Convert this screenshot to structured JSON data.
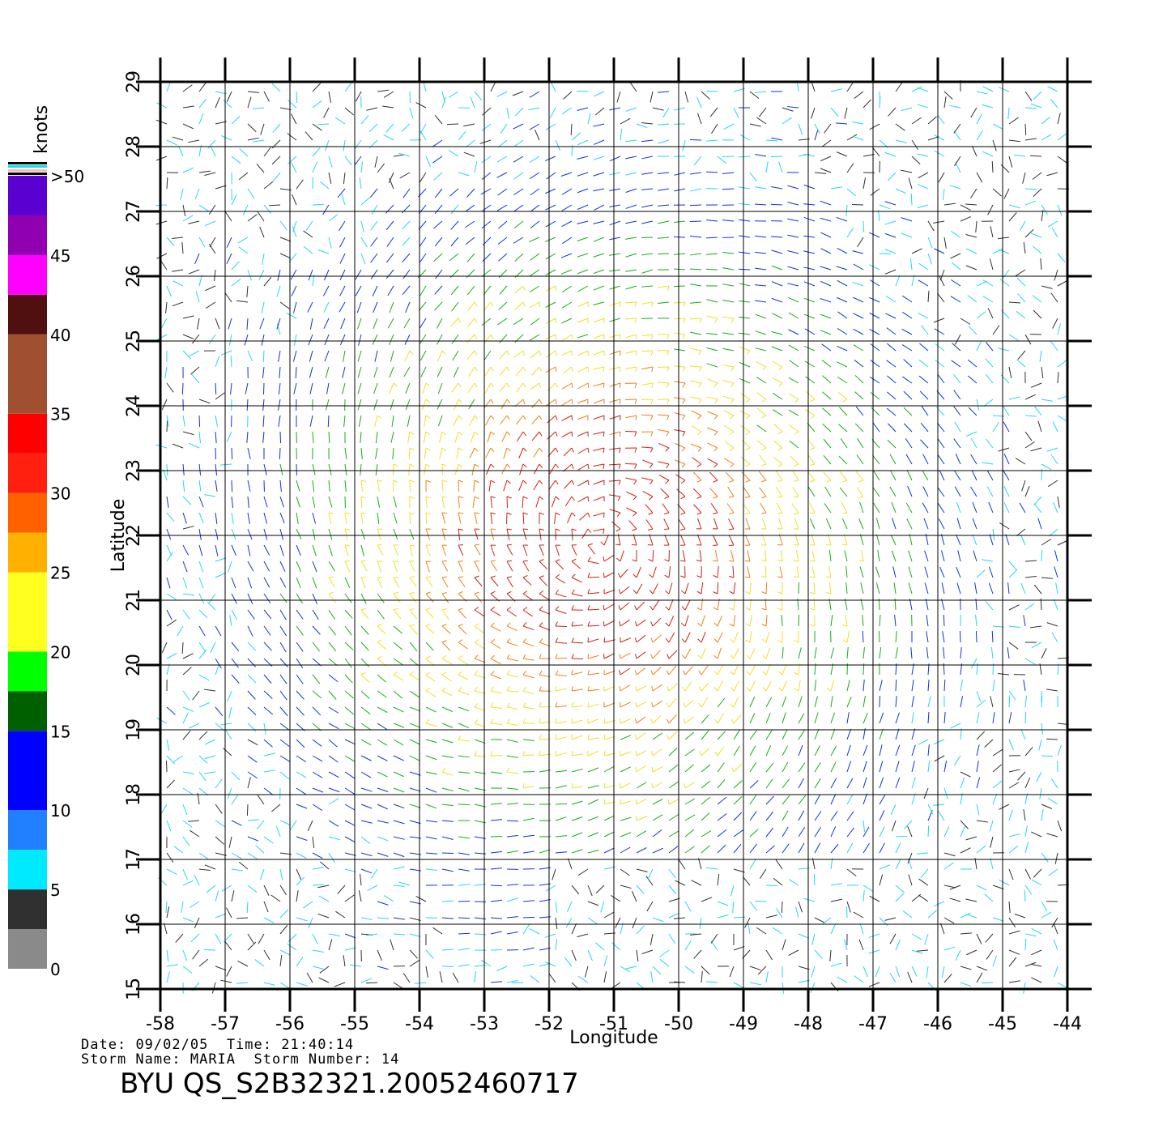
{
  "chart_data": {
    "type": "wind-vector-map",
    "xlabel": "Longitude",
    "ylabel": "Latitude",
    "xlim": [
      -58,
      -44
    ],
    "ylim": [
      15,
      29
    ],
    "x_ticks": [
      "-58",
      "-57",
      "-56",
      "-55",
      "-54",
      "-53",
      "-52",
      "-51",
      "-50",
      "-49",
      "-48",
      "-47",
      "-46",
      "-45",
      "-44"
    ],
    "y_ticks": [
      "15",
      "16",
      "17",
      "18",
      "19",
      "20",
      "21",
      "22",
      "23",
      "24",
      "25",
      "26",
      "27",
      "28",
      "29"
    ],
    "grid": true,
    "storm_center": {
      "lon": -51.2,
      "lat": 21.9
    },
    "colorbar": {
      "title": "knots",
      "labels": [
        "0",
        "5",
        "10",
        "15",
        "20",
        "25",
        "30",
        "35",
        "40",
        "45",
        ">50"
      ],
      "colors": [
        "#8a8a8a",
        "#303030",
        "#00eaff",
        "#2080ff",
        "#0000ff",
        "#006000",
        "#00ff00",
        "#ffff20",
        "#ffb000",
        "#ff6000",
        "#ff2010",
        "#ff0000",
        "#a05030",
        "#501010",
        "#ff00ff",
        "#9000b0",
        "#5a00d0"
      ]
    }
  },
  "footer": {
    "date_label": "Date:",
    "date": "09/02/05",
    "time_label": "Time:",
    "time": "21:40:14",
    "storm_name_label": "Storm Name:",
    "storm_name": "MARIA",
    "storm_number_label": "Storm Number:",
    "storm_number": "14",
    "title": "BYU QS_S2B32321.20052460717"
  }
}
